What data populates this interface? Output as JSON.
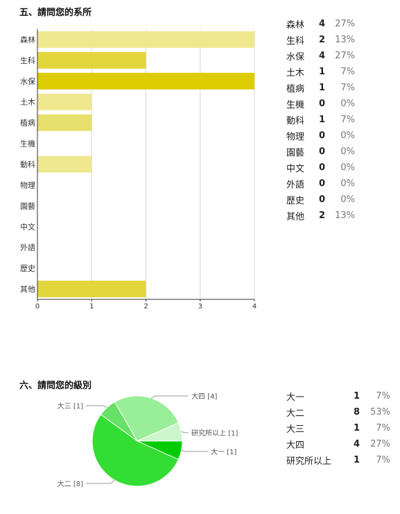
{
  "q5": {
    "title": "五、請問您的系所",
    "table": [
      {
        "label": "森林",
        "count": "4",
        "pct": "27%"
      },
      {
        "label": "生科",
        "count": "2",
        "pct": "13%"
      },
      {
        "label": "水保",
        "count": "4",
        "pct": "27%"
      },
      {
        "label": "土木",
        "count": "1",
        "pct": "7%"
      },
      {
        "label": "植病",
        "count": "1",
        "pct": "7%"
      },
      {
        "label": "生機",
        "count": "0",
        "pct": "0%"
      },
      {
        "label": "動科",
        "count": "1",
        "pct": "7%"
      },
      {
        "label": "物理",
        "count": "0",
        "pct": "0%"
      },
      {
        "label": "園藝",
        "count": "0",
        "pct": "0%"
      },
      {
        "label": "中文",
        "count": "0",
        "pct": "0%"
      },
      {
        "label": "外語",
        "count": "0",
        "pct": "0%"
      },
      {
        "label": "歷史",
        "count": "0",
        "pct": "0%"
      },
      {
        "label": "其他",
        "count": "2",
        "pct": "13%"
      }
    ]
  },
  "q6": {
    "title": "六、請問您的級別",
    "table": [
      {
        "label": "大一",
        "count": "1",
        "pct": "7%"
      },
      {
        "label": "大二",
        "count": "8",
        "pct": "53%"
      },
      {
        "label": "大三",
        "count": "1",
        "pct": "7%"
      },
      {
        "label": "大四",
        "count": "4",
        "pct": "27%"
      },
      {
        "label": "研究所以上",
        "count": "1",
        "pct": "7%"
      }
    ]
  },
  "chart_data": [
    {
      "type": "bar",
      "orientation": "horizontal",
      "categories": [
        "森林",
        "生科",
        "水保",
        "土木",
        "植病",
        "生機",
        "動科",
        "物理",
        "園藝",
        "中文",
        "外語",
        "歷史",
        "其他"
      ],
      "values": [
        4,
        2,
        4,
        1,
        1,
        0,
        1,
        0,
        0,
        0,
        0,
        0,
        2
      ],
      "xlim": [
        0,
        4
      ],
      "xticks": [
        "0",
        "1",
        "2",
        "3",
        "4"
      ],
      "colors": [
        "#efe88f",
        "#e3d53c",
        "#dccc00",
        "#efe88f",
        "#e7df6d",
        "#efe88f",
        "#efe88f",
        "#efe88f",
        "#efe88f",
        "#efe88f",
        "#efe88f",
        "#efe88f",
        "#e3d53c"
      ],
      "grid": true,
      "legend": "none"
    },
    {
      "type": "pie",
      "slices": [
        {
          "label": "大一 [1]",
          "value": 1,
          "color": "#00cc00"
        },
        {
          "label": "大二 [8]",
          "value": 8,
          "color": "#33dd33"
        },
        {
          "label": "大三 [1]",
          "value": 1,
          "color": "#66e066"
        },
        {
          "label": "大四 [4]",
          "value": 4,
          "color": "#99ee99"
        },
        {
          "label": "研究所以上 [1]",
          "value": 1,
          "color": "#ccf5cc"
        }
      ],
      "legend": "labels-with-leader-lines"
    }
  ]
}
